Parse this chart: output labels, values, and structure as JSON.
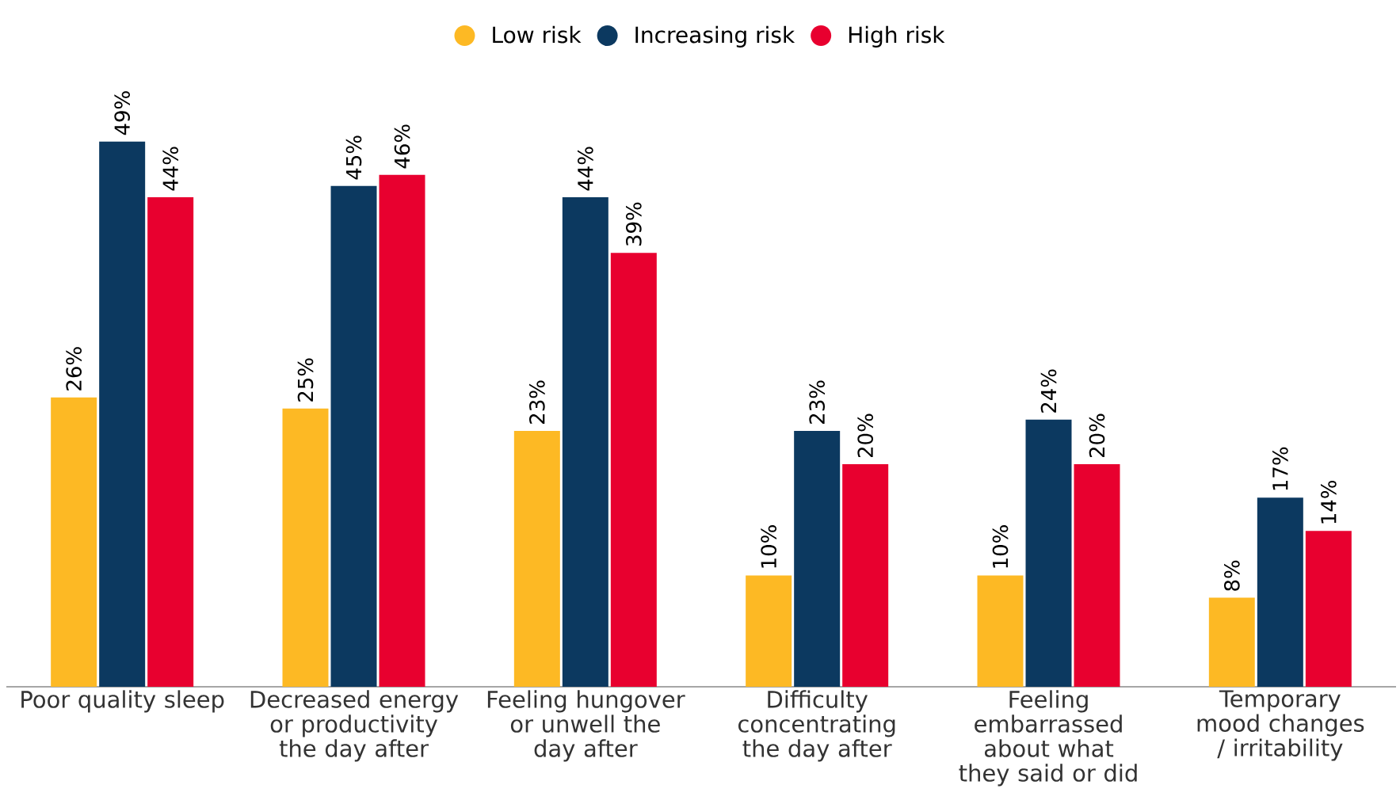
{
  "chart_data": {
    "type": "bar",
    "categories": [
      "Poor quality sleep",
      "Decreased energy or productivity the day after",
      "Feeling hungover or unwell the day after",
      "Difficulty concentrating the day after",
      "Feeling embarrassed about what they said or did",
      "Temporary mood changes / irritability"
    ],
    "series": [
      {
        "name": "Low risk",
        "color": "#fdb924",
        "values": [
          26,
          25,
          23,
          10,
          10,
          8
        ],
        "value_labels": [
          "26%",
          "25%",
          "23%",
          "10%",
          "10%",
          "8%"
        ]
      },
      {
        "name": "Increasing risk",
        "color": "#0c3960",
        "values": [
          49,
          45,
          44,
          23,
          24,
          17
        ],
        "value_labels": [
          "49%",
          "45%",
          "44%",
          "23%",
          "24%",
          "17%"
        ]
      },
      {
        "name": "High risk",
        "color": "#e8002f",
        "values": [
          44,
          46,
          39,
          20,
          20,
          14
        ],
        "value_labels": [
          "44%",
          "46%",
          "39%",
          "20%",
          "20%",
          "14%"
        ]
      }
    ],
    "legend": "top"
  }
}
